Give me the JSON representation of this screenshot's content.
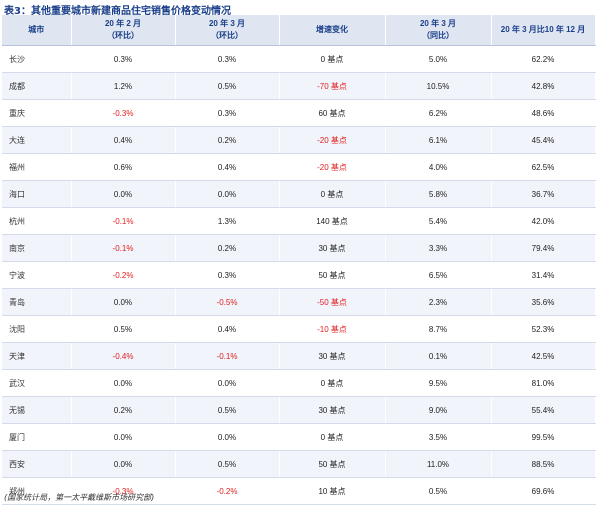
{
  "title": "表3：其他重要城市新建商品住宅销售价格变动情况",
  "headers": {
    "city": "城市",
    "feb_line1": "20 年 2 月",
    "feb_line2": "（环比）",
    "mar_line1": "20 年 3 月",
    "mar_line2": "（环比）",
    "change": "增速变化",
    "yoy_line1": "20 年 3 月",
    "yoy_line2": "（同比）",
    "ratio": "20 年 3 月比10 年 12 月"
  },
  "rows": [
    {
      "city": "长沙",
      "feb": "0.3%",
      "mar": "0.3%",
      "change": "0 基点",
      "yoy": "5.0%",
      "ratio": "62.2%"
    },
    {
      "city": "成都",
      "feb": "1.2%",
      "mar": "0.5%",
      "change": "-70 基点",
      "yoy": "10.5%",
      "ratio": "42.8%"
    },
    {
      "city": "重庆",
      "feb": "-0.3%",
      "mar": "0.3%",
      "change": "60 基点",
      "yoy": "6.2%",
      "ratio": "48.6%"
    },
    {
      "city": "大连",
      "feb": "0.4%",
      "mar": "0.2%",
      "change": "-20 基点",
      "yoy": "6.1%",
      "ratio": "45.4%"
    },
    {
      "city": "福州",
      "feb": "0.6%",
      "mar": "0.4%",
      "change": "-20 基点",
      "yoy": "4.0%",
      "ratio": "62.5%"
    },
    {
      "city": "海口",
      "feb": "0.0%",
      "mar": "0.0%",
      "change": "0 基点",
      "yoy": "5.8%",
      "ratio": "36.7%"
    },
    {
      "city": "杭州",
      "feb": "-0.1%",
      "mar": "1.3%",
      "change": "140 基点",
      "yoy": "5.4%",
      "ratio": "42.0%"
    },
    {
      "city": "南京",
      "feb": "-0.1%",
      "mar": "0.2%",
      "change": "30 基点",
      "yoy": "3.3%",
      "ratio": "79.4%"
    },
    {
      "city": "宁波",
      "feb": "-0.2%",
      "mar": "0.3%",
      "change": "50 基点",
      "yoy": "6.5%",
      "ratio": "31.4%"
    },
    {
      "city": "青岛",
      "feb": "0.0%",
      "mar": "-0.5%",
      "change": "-50 基点",
      "yoy": "2.3%",
      "ratio": "35.6%"
    },
    {
      "city": "沈阳",
      "feb": "0.5%",
      "mar": "0.4%",
      "change": "-10 基点",
      "yoy": "8.7%",
      "ratio": "52.3%"
    },
    {
      "city": "天津",
      "feb": "-0.4%",
      "mar": "-0.1%",
      "change": "30 基点",
      "yoy": "0.1%",
      "ratio": "42.5%"
    },
    {
      "city": "武汉",
      "feb": "0.0%",
      "mar": "0.0%",
      "change": "0 基点",
      "yoy": "9.5%",
      "ratio": "81.0%"
    },
    {
      "city": "无锡",
      "feb": "0.2%",
      "mar": "0.5%",
      "change": "30 基点",
      "yoy": "9.0%",
      "ratio": "55.4%"
    },
    {
      "city": "厦门",
      "feb": "0.0%",
      "mar": "0.0%",
      "change": "0 基点",
      "yoy": "3.5%",
      "ratio": "99.5%"
    },
    {
      "city": "西安",
      "feb": "0.0%",
      "mar": "0.5%",
      "change": "50 基点",
      "yoy": "11.0%",
      "ratio": "88.5%"
    },
    {
      "city": "郑州",
      "feb": "-0.3%",
      "mar": "-0.2%",
      "change": "10 基点",
      "yoy": "0.5%",
      "ratio": "69.6%"
    }
  ],
  "footnote": "(国家统计局，第一太平戴维斯市场研究部)",
  "colors": {
    "header_bg": "#dfe5f1",
    "title": "#1a3f8a",
    "negative": "#e02020",
    "stripe": "#f1f4fa"
  }
}
